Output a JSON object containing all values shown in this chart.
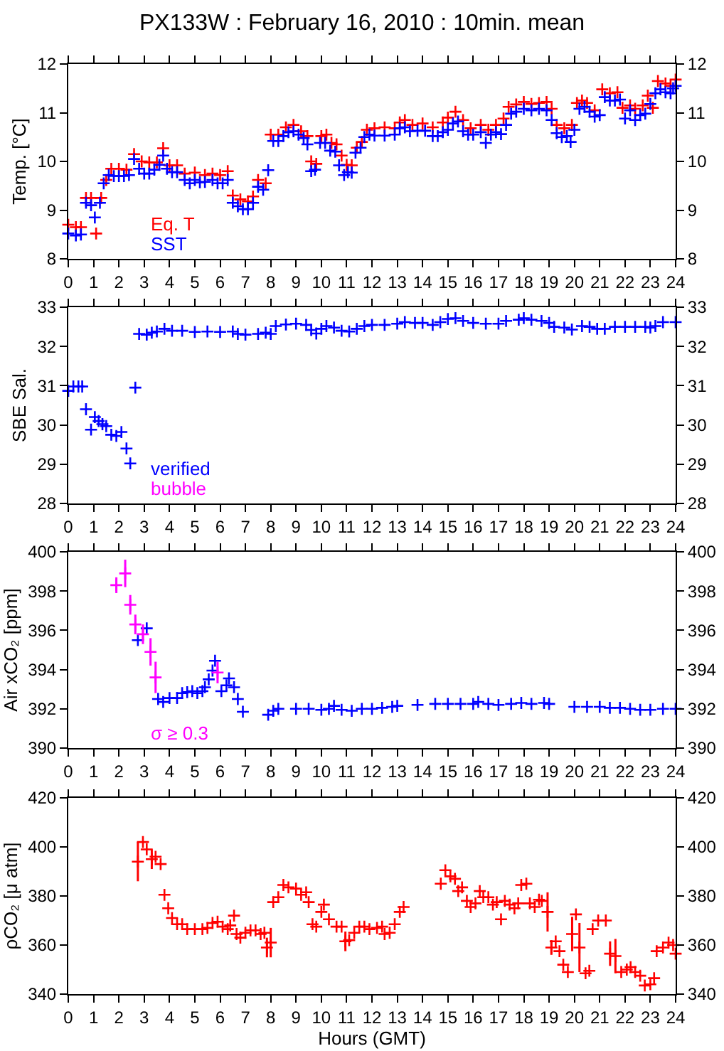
{
  "chart_data": [
    {
      "type": "scatter",
      "title": "PX133W : February 16, 2010 : 10min. mean",
      "ylabel": "Temp. [°C]",
      "xlim": [
        0,
        24
      ],
      "xticks": [
        0,
        1,
        2,
        3,
        4,
        5,
        6,
        7,
        8,
        9,
        10,
        11,
        12,
        13,
        14,
        15,
        16,
        17,
        18,
        19,
        20,
        21,
        22,
        23,
        24
      ],
      "ylim": [
        8,
        12
      ],
      "yticks": [
        8,
        9,
        10,
        11,
        12
      ],
      "y2lim": [
        8,
        12
      ],
      "y2ticks": [
        8,
        9,
        10,
        11,
        12
      ],
      "marker": "cross",
      "legend": "bottom left",
      "grid": false,
      "series": [
        {
          "name": "Eq. T",
          "color": "#ff0000",
          "x": [
            0.0,
            0.3,
            0.5,
            0.7,
            0.9,
            1.1,
            1.3,
            1.5,
            1.7,
            2.0,
            2.3,
            2.6,
            2.9,
            3.2,
            3.5,
            3.75,
            4.0,
            4.3,
            4.6,
            5.0,
            5.4,
            5.7,
            6.0,
            6.3,
            6.5,
            6.8,
            7.1,
            7.3,
            7.5,
            7.8,
            8.0,
            8.3,
            8.6,
            8.9,
            9.2,
            9.45,
            9.6,
            9.8,
            10.0,
            10.2,
            10.4,
            10.6,
            10.8,
            11.0,
            11.2,
            11.4,
            11.6,
            11.8,
            12.1,
            12.5,
            12.9,
            13.1,
            13.3,
            13.6,
            14.0,
            14.4,
            14.8,
            15.0,
            15.3,
            15.6,
            15.9,
            16.3,
            16.6,
            16.9,
            17.2,
            17.4,
            17.7,
            18.0,
            18.3,
            18.6,
            18.9,
            19.1,
            19.3,
            19.6,
            19.9,
            20.1,
            20.3,
            20.5,
            20.8,
            21.1,
            21.4,
            21.7,
            21.9,
            22.2,
            22.4,
            22.7,
            22.9,
            23.1,
            23.3,
            23.6,
            23.8,
            24.0
          ],
          "values": [
            8.7,
            8.65,
            8.65,
            9.25,
            9.25,
            8.52,
            9.25,
            9.62,
            9.85,
            9.85,
            9.83,
            10.15,
            10.0,
            9.98,
            9.98,
            10.27,
            9.92,
            9.92,
            9.75,
            9.77,
            9.72,
            9.75,
            9.72,
            9.8,
            9.3,
            9.22,
            9.18,
            9.28,
            9.62,
            9.55,
            10.55,
            10.55,
            10.7,
            10.75,
            10.62,
            10.52,
            10.0,
            9.95,
            10.52,
            10.55,
            10.38,
            10.35,
            10.12,
            9.93,
            9.92,
            10.28,
            10.4,
            10.65,
            10.68,
            10.7,
            10.68,
            10.8,
            10.85,
            10.75,
            10.78,
            10.7,
            10.8,
            10.9,
            11.02,
            10.85,
            10.68,
            10.75,
            10.65,
            10.75,
            10.88,
            11.12,
            11.17,
            11.22,
            11.18,
            11.2,
            11.22,
            11.08,
            10.75,
            10.68,
            10.75,
            11.2,
            11.25,
            11.2,
            11.05,
            11.48,
            11.4,
            11.42,
            11.1,
            11.15,
            11.08,
            11.15,
            11.35,
            11.1,
            11.65,
            11.6,
            11.55,
            11.68
          ]
        },
        {
          "name": "SST",
          "color": "#0000ff",
          "x": [
            0.0,
            0.3,
            0.5,
            0.7,
            0.9,
            1.05,
            1.25,
            1.4,
            1.6,
            1.8,
            2.0,
            2.2,
            2.4,
            2.6,
            2.8,
            3.0,
            3.2,
            3.4,
            3.6,
            3.75,
            3.9,
            4.1,
            4.3,
            4.6,
            4.8,
            5.0,
            5.2,
            5.4,
            5.7,
            5.9,
            6.1,
            6.3,
            6.5,
            6.7,
            6.9,
            7.1,
            7.3,
            7.5,
            7.7,
            7.9,
            8.1,
            8.3,
            8.5,
            8.7,
            8.9,
            9.1,
            9.3,
            9.45,
            9.6,
            9.75,
            9.95,
            10.15,
            10.35,
            10.55,
            10.7,
            10.9,
            11.05,
            11.2,
            11.35,
            11.55,
            11.7,
            11.9,
            12.1,
            12.5,
            12.9,
            13.1,
            13.3,
            13.5,
            13.8,
            14.1,
            14.4,
            14.6,
            14.8,
            15.0,
            15.2,
            15.4,
            15.6,
            15.8,
            16.0,
            16.3,
            16.5,
            16.7,
            16.9,
            17.1,
            17.3,
            17.5,
            17.7,
            18.0,
            18.3,
            18.6,
            18.9,
            19.1,
            19.3,
            19.5,
            19.7,
            19.85,
            20.0,
            20.2,
            20.4,
            20.6,
            20.8,
            21.0,
            21.2,
            21.4,
            21.6,
            21.8,
            22.0,
            22.2,
            22.4,
            22.6,
            22.8,
            23.0,
            23.2,
            23.4,
            23.6,
            23.8,
            23.9,
            24.0
          ],
          "values": [
            8.52,
            8.48,
            8.5,
            9.15,
            9.1,
            8.85,
            9.15,
            9.55,
            9.72,
            9.7,
            9.7,
            9.7,
            9.72,
            10.05,
            9.85,
            9.75,
            9.75,
            9.83,
            9.93,
            10.12,
            9.85,
            9.78,
            9.78,
            9.62,
            9.55,
            9.62,
            9.57,
            9.58,
            9.62,
            9.55,
            9.55,
            9.62,
            9.15,
            9.08,
            9.02,
            9.02,
            9.15,
            9.48,
            9.42,
            9.82,
            10.42,
            10.42,
            10.52,
            10.6,
            10.62,
            10.55,
            10.48,
            10.35,
            9.8,
            9.83,
            10.38,
            10.38,
            10.22,
            10.2,
            9.92,
            9.72,
            9.78,
            9.77,
            10.18,
            10.28,
            10.5,
            10.55,
            10.53,
            10.53,
            10.55,
            10.68,
            10.7,
            10.62,
            10.63,
            10.63,
            10.52,
            10.52,
            10.6,
            10.65,
            10.78,
            10.82,
            10.62,
            10.55,
            10.55,
            10.6,
            10.38,
            10.55,
            10.6,
            10.56,
            10.75,
            10.98,
            11.02,
            11.08,
            11.05,
            11.08,
            11.05,
            10.85,
            10.58,
            10.5,
            10.52,
            10.4,
            10.65,
            11.08,
            11.12,
            11.02,
            10.92,
            10.95,
            11.32,
            11.25,
            11.25,
            11.27,
            10.88,
            11.05,
            10.85,
            10.95,
            10.98,
            11.18,
            11.4,
            11.48,
            11.42,
            11.4,
            11.5,
            11.55
          ]
        }
      ]
    },
    {
      "type": "scatter",
      "ylabel": "SBE Sal.",
      "xlim": [
        0,
        24
      ],
      "xticks": [
        0,
        1,
        2,
        3,
        4,
        5,
        6,
        7,
        8,
        9,
        10,
        11,
        12,
        13,
        14,
        15,
        16,
        17,
        18,
        19,
        20,
        21,
        22,
        23,
        24
      ],
      "ylim": [
        28,
        33
      ],
      "yticks": [
        28,
        29,
        30,
        31,
        32,
        33
      ],
      "y2lim": [
        28,
        33
      ],
      "y2ticks": [
        28,
        29,
        30,
        31,
        32,
        33
      ],
      "marker": "cross",
      "legend": "bottom left",
      "grid": false,
      "series": [
        {
          "name": "verified",
          "color": "#0000ff",
          "x": [
            0.0,
            0.2,
            0.4,
            0.55,
            0.7,
            0.9,
            1.05,
            1.2,
            1.35,
            1.5,
            1.7,
            1.9,
            2.1,
            2.3,
            2.45,
            2.65,
            2.8,
            3.1,
            3.3,
            3.5,
            3.8,
            4.1,
            4.5,
            5.0,
            5.5,
            6.0,
            6.5,
            6.7,
            7.0,
            7.5,
            7.8,
            8.0,
            8.2,
            8.6,
            9.0,
            9.4,
            9.6,
            9.8,
            10.0,
            10.2,
            10.5,
            10.8,
            11.1,
            11.4,
            11.7,
            12.0,
            12.5,
            13.0,
            13.3,
            13.7,
            14.0,
            14.4,
            14.7,
            15.0,
            15.3,
            15.6,
            16.0,
            16.5,
            17.0,
            17.3,
            17.8,
            18.0,
            18.3,
            18.7,
            19.0,
            19.2,
            19.6,
            19.9,
            20.3,
            20.6,
            20.9,
            21.2,
            21.6,
            22.0,
            22.4,
            22.8,
            23.0,
            23.2,
            23.5,
            24.0
          ],
          "values": [
            30.87,
            30.98,
            30.98,
            30.98,
            30.4,
            29.88,
            30.2,
            30.1,
            30.02,
            29.97,
            29.75,
            29.72,
            29.82,
            29.4,
            29.02,
            30.95,
            32.32,
            32.3,
            32.35,
            32.38,
            32.45,
            32.4,
            32.4,
            32.37,
            32.38,
            32.37,
            32.38,
            32.32,
            32.3,
            32.32,
            32.35,
            32.32,
            32.52,
            32.56,
            32.58,
            32.55,
            32.42,
            32.33,
            32.45,
            32.52,
            32.48,
            32.4,
            32.38,
            32.45,
            32.52,
            32.55,
            32.55,
            32.58,
            32.62,
            32.6,
            32.6,
            32.55,
            32.62,
            32.7,
            32.72,
            32.65,
            32.6,
            32.58,
            32.58,
            32.65,
            32.68,
            32.72,
            32.68,
            32.65,
            32.6,
            32.5,
            32.48,
            32.43,
            32.52,
            32.5,
            32.45,
            32.45,
            32.5,
            32.5,
            32.5,
            32.5,
            32.48,
            32.52,
            32.62,
            32.62
          ]
        },
        {
          "name": "bubble",
          "color": "#ff00ff"
        }
      ]
    },
    {
      "type": "scatter",
      "ylabel": "Air xCO₂ [ppm]",
      "xlim": [
        0,
        24
      ],
      "xticks": [
        0,
        1,
        2,
        3,
        4,
        5,
        6,
        7,
        8,
        9,
        10,
        11,
        12,
        13,
        14,
        15,
        16,
        17,
        18,
        19,
        20,
        21,
        22,
        23,
        24
      ],
      "ylim": [
        390,
        400
      ],
      "yticks": [
        390,
        392,
        394,
        396,
        398,
        400
      ],
      "y2lim": [
        390,
        400
      ],
      "y2ticks": [
        390,
        392,
        394,
        396,
        398,
        400
      ],
      "marker": "cross",
      "legend": "bottom left",
      "grid": false,
      "series": [
        {
          "color": "#0000ff",
          "x": [
            2.75,
            3.1,
            3.55,
            3.75,
            4.0,
            4.3,
            4.5,
            4.7,
            4.9,
            5.1,
            5.3,
            5.4,
            5.55,
            5.7,
            5.8,
            6.05,
            6.25,
            6.35,
            6.55,
            6.7,
            6.9,
            7.9,
            8.1,
            8.3,
            9.0,
            9.5,
            10.0,
            10.3,
            10.5,
            10.8,
            11.2,
            11.6,
            12.0,
            12.4,
            12.8,
            13.0,
            13.4,
            13.8,
            14.5,
            15.0,
            15.5,
            16.0,
            16.2,
            16.6,
            17.0,
            17.5,
            17.9,
            18.3,
            18.8,
            19.0,
            19.5,
            20.0,
            20.5,
            21.0,
            21.4,
            21.8,
            22.2,
            22.6,
            23.0,
            23.5,
            24.0
          ],
          "values": [
            395.5,
            396.1,
            392.5,
            392.35,
            392.55,
            392.55,
            392.8,
            392.85,
            392.9,
            392.8,
            392.9,
            393.1,
            393.5,
            393.95,
            394.45,
            392.9,
            393.2,
            393.55,
            393.1,
            392.5,
            391.85,
            391.7,
            391.9,
            392.0,
            392.0,
            392.0,
            391.95,
            392.0,
            392.15,
            391.95,
            391.9,
            392.0,
            392.0,
            392.05,
            392.1,
            392.15,
            null,
            392.2,
            392.25,
            392.25,
            392.25,
            392.25,
            392.35,
            392.25,
            392.2,
            392.25,
            392.3,
            392.25,
            392.3,
            392.25,
            null,
            392.1,
            392.1,
            392.1,
            392.05,
            392.05,
            392.0,
            391.95,
            391.95,
            392.0,
            392.0
          ]
        },
        {
          "name": "σ ≥ 0.3",
          "color": "#ff00ff",
          "x": [
            1.9,
            2.25,
            2.45,
            2.65,
            2.95,
            3.25,
            3.45,
            5.9
          ],
          "values": [
            398.3,
            398.9,
            397.3,
            396.3,
            395.8,
            394.9,
            393.6,
            393.85
          ],
          "errors": [
            0.4,
            0.7,
            0.5,
            0.5,
            0.5,
            0.7,
            0.8,
            0.55
          ]
        }
      ]
    },
    {
      "type": "scatter",
      "xlabel": "Hours (GMT)",
      "ylabel": "ρCO₂ [μ atm]",
      "xlim": [
        0,
        24
      ],
      "xticks": [
        0,
        1,
        2,
        3,
        4,
        5,
        6,
        7,
        8,
        9,
        10,
        11,
        12,
        13,
        14,
        15,
        16,
        17,
        18,
        19,
        20,
        21,
        22,
        23,
        24
      ],
      "ylim": [
        340,
        420
      ],
      "yticks": [
        340,
        360,
        380,
        400,
        420
      ],
      "y2lim": [
        340,
        420
      ],
      "y2ticks": [
        340,
        360,
        380,
        400,
        420
      ],
      "marker": "cross",
      "grid": false,
      "series": [
        {
          "color": "#ff0000",
          "x": [
            2.75,
            2.95,
            3.1,
            3.3,
            3.45,
            3.65,
            3.8,
            3.95,
            4.1,
            4.3,
            4.5,
            4.7,
            5.0,
            5.3,
            5.5,
            5.7,
            5.9,
            6.1,
            6.3,
            6.4,
            6.55,
            6.65,
            6.8,
            7.0,
            7.2,
            7.4,
            7.6,
            7.75,
            7.85,
            8.0,
            8.1,
            8.3,
            8.5,
            8.7,
            9.0,
            9.2,
            9.4,
            9.5,
            9.65,
            9.8,
            10.0,
            10.1,
            10.3,
            10.6,
            10.8,
            10.95,
            11.1,
            11.3,
            11.5,
            11.7,
            11.9,
            12.2,
            12.4,
            12.5,
            12.7,
            12.9,
            13.1,
            13.25,
            14.72,
            14.9,
            15.1,
            15.28,
            15.41,
            15.56,
            15.75,
            15.9,
            16.09,
            16.26,
            16.4,
            16.6,
            16.78,
            16.93,
            17.1,
            17.25,
            17.44,
            17.63,
            17.78,
            17.9,
            18.1,
            18.24,
            18.43,
            18.6,
            18.71,
            18.94,
            19.09,
            19.26,
            19.41,
            19.56,
            19.74,
            19.91,
            20.06,
            20.2,
            20.44,
            20.59,
            20.72,
            20.94,
            21.24,
            21.41,
            21.62,
            21.85,
            22.07,
            22.22,
            22.4,
            22.6,
            22.78,
            23.0,
            23.15,
            23.25,
            23.5,
            23.72,
            23.9,
            24.0
          ],
          "values": [
            394,
            402,
            399,
            395,
            396,
            393,
            380.5,
            375,
            371,
            368.5,
            368.5,
            366.5,
            366.5,
            366.5,
            367,
            369,
            369.5,
            367.5,
            366.5,
            368,
            372,
            364.5,
            363,
            365,
            366,
            366,
            364.5,
            365,
            359,
            361,
            377.5,
            379.5,
            384.5,
            383.5,
            383,
            380.5,
            381.5,
            377.5,
            368.5,
            367.5,
            373.5,
            376.5,
            370.5,
            367.5,
            367.5,
            361.5,
            362,
            365,
            367.5,
            367.5,
            366.5,
            367,
            367.5,
            364.5,
            365,
            368.5,
            373.5,
            375.5,
            385,
            390.5,
            388,
            387,
            382,
            383.5,
            378,
            375.5,
            377,
            382,
            379.5,
            379.5,
            376.5,
            377.5,
            370.5,
            378,
            376.5,
            375,
            377,
            384.5,
            385,
            377,
            375.5,
            378.5,
            378,
            373.5,
            359,
            361.5,
            357.5,
            352,
            349,
            364.5,
            372.5,
            359,
            348.5,
            349.5,
            366.5,
            370,
            370,
            356.5,
            355.5,
            349,
            350,
            351,
            349,
            347.5,
            343.5,
            344,
            346.5,
            357.5,
            359,
            361,
            360,
            356.5
          ],
          "errors": [
            8,
            null,
            null,
            4,
            null,
            null,
            null,
            null,
            null,
            null,
            null,
            null,
            null,
            null,
            null,
            null,
            null,
            null,
            null,
            null,
            null,
            null,
            null,
            null,
            null,
            null,
            null,
            null,
            4,
            6,
            null,
            null,
            null,
            null,
            null,
            null,
            null,
            null,
            null,
            null,
            null,
            null,
            null,
            null,
            null,
            4,
            null,
            null,
            null,
            null,
            null,
            null,
            null,
            null,
            null,
            null,
            null,
            null,
            null,
            null,
            null,
            null,
            null,
            null,
            null,
            null,
            null,
            null,
            null,
            null,
            null,
            null,
            null,
            null,
            null,
            null,
            null,
            null,
            null,
            null,
            null,
            null,
            null,
            8,
            3,
            null,
            null,
            null,
            null,
            7,
            null,
            10,
            null,
            null,
            null,
            null,
            null,
            5,
            7,
            null,
            null,
            null,
            null,
            null,
            null,
            null,
            null,
            null,
            null,
            null,
            null,
            null
          ]
        }
      ]
    }
  ]
}
